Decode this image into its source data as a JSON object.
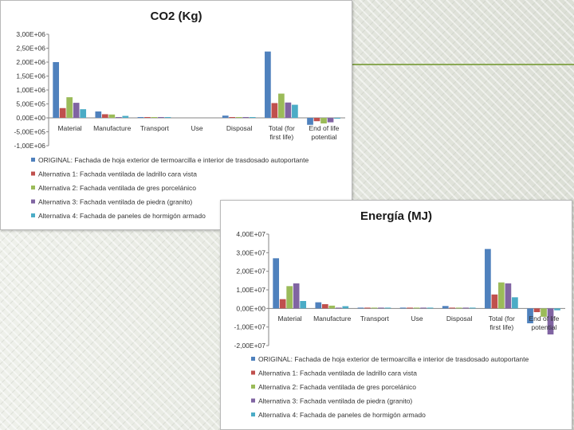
{
  "chart_data": [
    {
      "type": "bar",
      "title": "CO2 (Kg)",
      "categories": [
        "Material",
        "Manufacture",
        "Transport",
        "Use",
        "Disposal",
        "Total (for first life)",
        "End of life potential"
      ],
      "category_lines": [
        [
          "Material"
        ],
        [
          "Manufacture"
        ],
        [
          "Transport"
        ],
        [
          "Use"
        ],
        [
          "Disposal"
        ],
        [
          "Total (for",
          "first life)"
        ],
        [
          "End of life",
          "potential"
        ]
      ],
      "ylim": [
        -1000000,
        3000000
      ],
      "yticks": [
        3000000,
        2500000,
        2000000,
        1500000,
        1000000,
        500000,
        0,
        -500000,
        -1000000
      ],
      "ytick_labels": [
        "3,00E+06",
        "2,50E+06",
        "2,00E+06",
        "1,50E+06",
        "1,00E+06",
        "5,00E+05",
        "0,00E+00",
        "-5,00E+05",
        "-1,00E+06"
      ],
      "series": [
        {
          "name": "ORIGINAL: Fachada de hoja exterior de termoarcilla e interior de trasdosado autoportante",
          "color": "#4f81bd",
          "values": [
            2000000,
            230000,
            5000,
            0,
            80000,
            2380000,
            -250000
          ]
        },
        {
          "name": "Alternativa 1: Fachada ventilada de ladrillo cara vista",
          "color": "#c0504d",
          "values": [
            350000,
            130000,
            5000,
            0,
            10000,
            530000,
            -120000
          ]
        },
        {
          "name": "Alternativa 2: Fachada ventilada de gres porcelánico",
          "color": "#9bbb59",
          "values": [
            740000,
            120000,
            5000,
            0,
            10000,
            870000,
            -200000
          ]
        },
        {
          "name": "Alternativa 3: Fachada ventilada de piedra (granito)",
          "color": "#8064a2",
          "values": [
            540000,
            10000,
            5000,
            0,
            10000,
            550000,
            -160000
          ]
        },
        {
          "name": "Alternativa 4: Fachada de paneles de hormigón armado",
          "color": "#4bacc6",
          "values": [
            310000,
            70000,
            5000,
            0,
            10000,
            470000,
            -30000
          ]
        }
      ]
    },
    {
      "type": "bar",
      "title": "Energía (MJ)",
      "categories": [
        "Material",
        "Manufacture",
        "Transport",
        "Use",
        "Disposal",
        "Total (for first life)",
        "End of life potential"
      ],
      "category_lines": [
        [
          "Material"
        ],
        [
          "Manufacture"
        ],
        [
          "Transport"
        ],
        [
          "Use"
        ],
        [
          "Disposal"
        ],
        [
          "Total (for",
          "first life)"
        ],
        [
          "End of life",
          "potential"
        ]
      ],
      "ylim": [
        -20000000,
        40000000
      ],
      "yticks": [
        40000000,
        30000000,
        20000000,
        10000000,
        0,
        -10000000,
        -20000000
      ],
      "ytick_labels": [
        "4,00E+07",
        "3,00E+07",
        "2,00E+07",
        "1,00E+07",
        "0,00E+00",
        "-1,00E+07",
        "-2,00E+07"
      ],
      "series": [
        {
          "name": "ORIGINAL: Fachada de hoja exterior de termoarcilla e interior de trasdosado autoportante",
          "color": "#4f81bd",
          "values": [
            27000000,
            3300000,
            300000,
            300000,
            1300000,
            32000000,
            -8000000
          ]
        },
        {
          "name": "Alternativa 1: Fachada ventilada de ladrillo cara vista",
          "color": "#c0504d",
          "values": [
            5000000,
            2300000,
            300000,
            300000,
            300000,
            7500000,
            -2000000
          ]
        },
        {
          "name": "Alternativa 2: Fachada ventilada de gres porcelánico",
          "color": "#9bbb59",
          "values": [
            12000000,
            1500000,
            300000,
            300000,
            300000,
            14000000,
            -4500000
          ]
        },
        {
          "name": "Alternativa 3: Fachada ventilada de piedra (granito)",
          "color": "#8064a2",
          "values": [
            13500000,
            300000,
            300000,
            300000,
            300000,
            13500000,
            -14000000
          ]
        },
        {
          "name": "Alternativa 4: Fachada de paneles de hormigón armado",
          "color": "#4bacc6",
          "values": [
            4000000,
            1200000,
            300000,
            300000,
            300000,
            6000000,
            -1000000
          ]
        }
      ]
    }
  ]
}
